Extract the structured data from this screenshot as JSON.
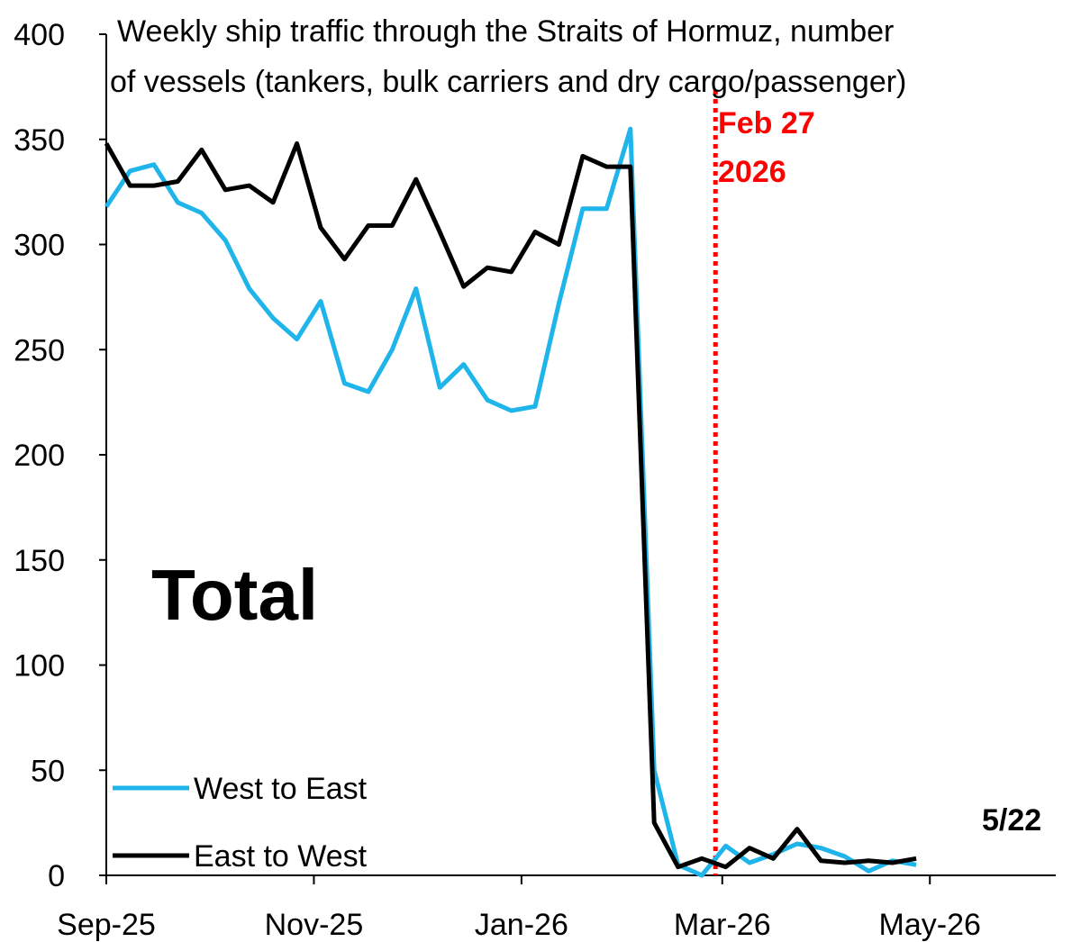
{
  "chart_data": {
    "type": "line",
    "title_lines": [
      "Weekly ship traffic through the Straits of Hormuz, number",
      "of vessels (tankers, bulk carriers and dry cargo/passenger)"
    ],
    "ylim": [
      0,
      400
    ],
    "y_ticks": [
      "0",
      "50",
      "100",
      "150",
      "200",
      "250",
      "300",
      "350",
      "400"
    ],
    "x_tick_labels": [
      "Sep-25",
      "Nov-25",
      "Jan-26",
      "Mar-26",
      "May-26"
    ],
    "x_tick_dates": [
      "2025-09-01",
      "2025-11-01",
      "2026-01-01",
      "2026-03-01",
      "2026-05-01"
    ],
    "xlim": [
      "2025-09-01",
      "2026-06-07"
    ],
    "grid": false,
    "legend_position": "bottom-left",
    "series": [
      {
        "name": "West to East",
        "color": "#1fb4ea",
        "x": [
          "2025-09-01",
          "2025-09-08",
          "2025-09-15",
          "2025-09-22",
          "2025-09-29",
          "2025-10-06",
          "2025-10-13",
          "2025-10-20",
          "2025-10-27",
          "2025-11-03",
          "2025-11-10",
          "2025-11-17",
          "2025-11-24",
          "2025-12-01",
          "2025-12-08",
          "2025-12-15",
          "2025-12-22",
          "2025-12-29",
          "2026-01-05",
          "2026-01-12",
          "2026-01-19",
          "2026-01-26",
          "2026-02-02",
          "2026-02-09",
          "2026-02-16",
          "2026-02-23",
          "2026-03-02",
          "2026-03-09",
          "2026-03-16",
          "2026-03-23",
          "2026-03-30",
          "2026-04-06",
          "2026-04-13",
          "2026-04-20",
          "2026-04-27",
          "2026-05-04",
          "2026-05-11",
          "2026-05-18",
          "2026-05-22"
        ],
        "values": [
          318,
          335,
          338,
          320,
          315,
          302,
          279,
          265,
          255,
          273,
          234,
          230,
          250,
          279,
          232,
          243,
          226,
          221,
          223,
          272,
          317,
          317,
          355,
          50,
          5,
          0,
          14,
          6,
          10,
          15,
          13,
          9,
          2,
          7,
          5,
          null,
          null,
          null,
          null
        ]
      },
      {
        "name": "East to West",
        "color": "#000000",
        "x": [
          "2025-09-01",
          "2025-09-08",
          "2025-09-15",
          "2025-09-22",
          "2025-09-29",
          "2025-10-06",
          "2025-10-13",
          "2025-10-20",
          "2025-10-27",
          "2025-11-03",
          "2025-11-10",
          "2025-11-17",
          "2025-11-24",
          "2025-12-01",
          "2025-12-08",
          "2025-12-15",
          "2025-12-22",
          "2025-12-29",
          "2026-01-05",
          "2026-01-12",
          "2026-01-19",
          "2026-01-26",
          "2026-02-02",
          "2026-02-09",
          "2026-02-16",
          "2026-02-23",
          "2026-03-02",
          "2026-03-09",
          "2026-03-16",
          "2026-03-23",
          "2026-03-30",
          "2026-04-06",
          "2026-04-13",
          "2026-04-20",
          "2026-04-27",
          "2026-05-04",
          "2026-05-11",
          "2026-05-18",
          "2026-05-22"
        ],
        "values": [
          348,
          328,
          328,
          330,
          345,
          326,
          328,
          320,
          348,
          308,
          293,
          309,
          309,
          331,
          306,
          280,
          289,
          287,
          306,
          300,
          342,
          337,
          337,
          25,
          4,
          8,
          4,
          13,
          8,
          22,
          7,
          6,
          7,
          6,
          8,
          null,
          null,
          null,
          null
        ]
      }
    ],
    "annotations": {
      "event_line_date": "2026-02-27",
      "event_label_line1": "Feb 27",
      "event_label_line2": "2026",
      "event_color": "#ff0000",
      "end_label": "5/22",
      "panel_label": "Total"
    }
  }
}
